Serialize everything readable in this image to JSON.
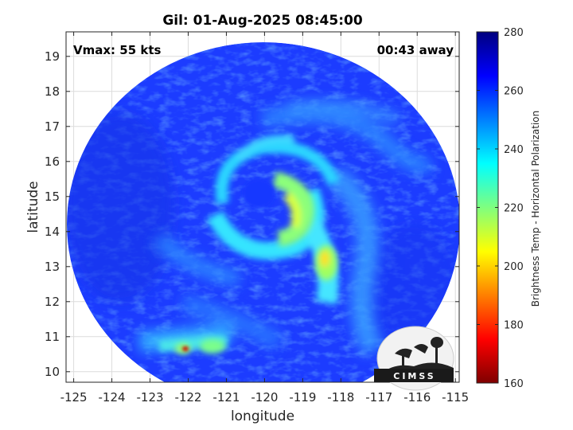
{
  "title": "Gil: 01-Aug-2025 08:45:00",
  "annotations": {
    "vmax": "Vmax: 55 kts",
    "time_away": "00:43 away"
  },
  "axes": {
    "xlabel": "longitude",
    "ylabel": "latitude",
    "xlim": [
      -125.2,
      -114.9
    ],
    "ylim": [
      9.7,
      19.7
    ],
    "xticks": [
      -125,
      -124,
      -123,
      -122,
      -121,
      -120,
      -119,
      -118,
      -117,
      -116,
      -115
    ],
    "xtick_labels": [
      "-125",
      "-124",
      "-123",
      "-122",
      "-121",
      "-120",
      "-119",
      "-118",
      "-117",
      "-116",
      "-115"
    ],
    "yticks": [
      10,
      11,
      12,
      13,
      14,
      15,
      16,
      17,
      18,
      19
    ],
    "ytick_labels": [
      "10",
      "11",
      "12",
      "13",
      "14",
      "15",
      "16",
      "17",
      "18",
      "19"
    ],
    "grid": true
  },
  "colorbar": {
    "label": "Brightness Temp - Horizontal Polarization",
    "range": [
      160,
      280
    ],
    "ticks": [
      160,
      180,
      200,
      220,
      240,
      260,
      280
    ],
    "tick_labels": [
      "160",
      "180",
      "200",
      "220",
      "240",
      "260",
      "280"
    ],
    "colormap": "jet"
  },
  "storm": {
    "center_lon": -120.2,
    "center_lat": 14.9
  },
  "logo": {
    "text": "CIMSS"
  }
}
